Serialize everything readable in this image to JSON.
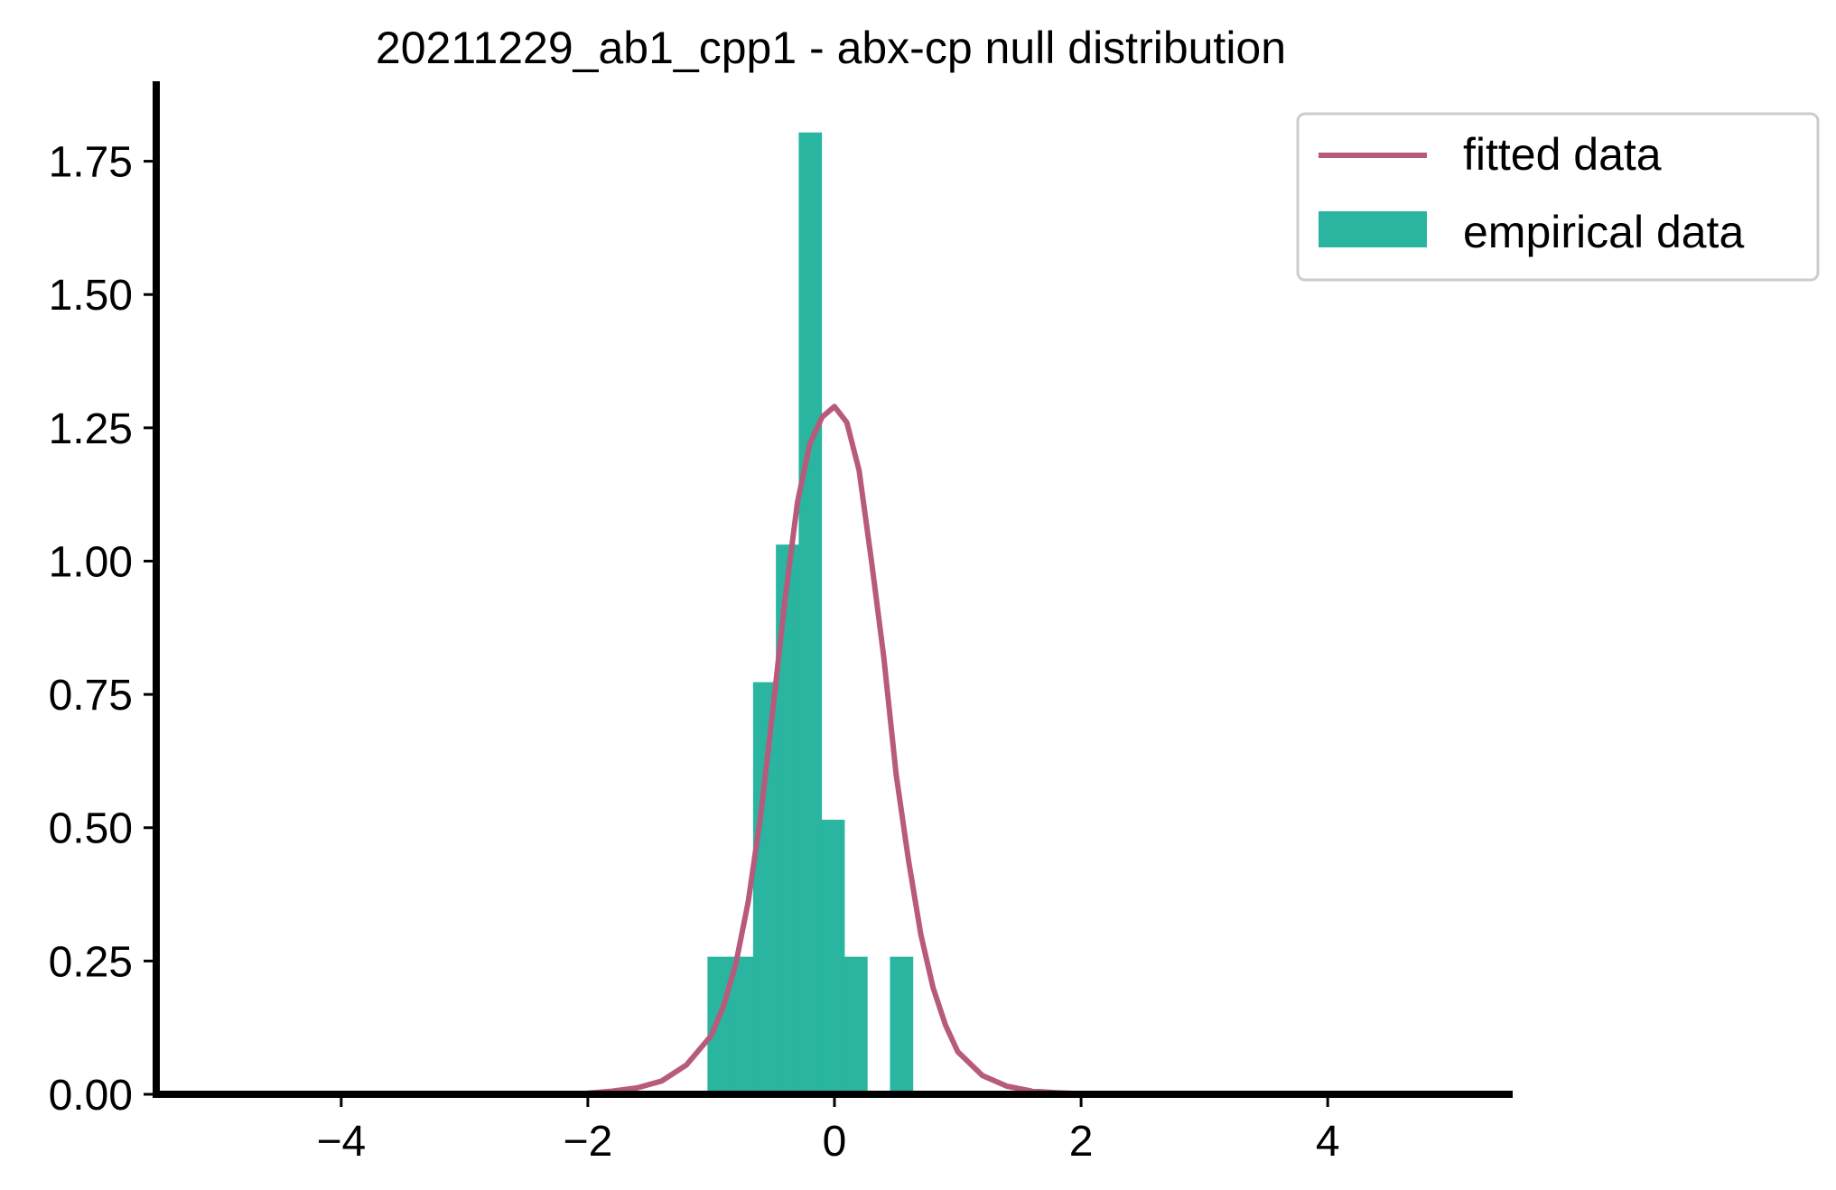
{
  "chart_data": {
    "type": "bar",
    "title": "20211229_ab1_cpp1 - abx-cp null distribution",
    "xlabel": "",
    "ylabel": "",
    "xlim": [
      -5.5,
      5.5
    ],
    "ylim": [
      0,
      1.9
    ],
    "x_ticks": [
      -4,
      -2,
      0,
      2,
      4
    ],
    "x_tick_labels": [
      "−4",
      "−2",
      "0",
      "2",
      "4"
    ],
    "y_ticks": [
      0,
      0.25,
      0.5,
      0.75,
      1.0,
      1.25,
      1.5,
      1.75
    ],
    "y_tick_labels": [
      "0.00",
      "0.25",
      "0.50",
      "0.75",
      "1.00",
      "1.25",
      "1.50",
      "1.75"
    ],
    "grid": false,
    "legend_position": "top-right, outside plot area",
    "series": [
      {
        "name": "empirical data",
        "kind": "histogram",
        "color": "#29b5a0",
        "bins": [
          {
            "x0": -1.03,
            "x1": -0.845,
            "value": 0.258
          },
          {
            "x0": -0.845,
            "x1": -0.66,
            "value": 0.258
          },
          {
            "x0": -0.66,
            "x1": -0.475,
            "value": 0.773
          },
          {
            "x0": -0.475,
            "x1": -0.29,
            "value": 1.031
          },
          {
            "x0": -0.29,
            "x1": -0.105,
            "value": 1.804
          },
          {
            "x0": -0.105,
            "x1": 0.08,
            "value": 0.515
          },
          {
            "x0": 0.08,
            "x1": 0.265,
            "value": 0.258
          },
          {
            "x0": 0.265,
            "x1": 0.45,
            "value": 0.0
          },
          {
            "x0": 0.45,
            "x1": 0.635,
            "value": 0.258
          }
        ]
      },
      {
        "name": "fitted data",
        "kind": "line",
        "color": "#b85a7c",
        "x": [
          -2.0,
          -1.8,
          -1.6,
          -1.4,
          -1.2,
          -1.0,
          -0.9,
          -0.8,
          -0.7,
          -0.6,
          -0.5,
          -0.4,
          -0.3,
          -0.2,
          -0.1,
          0.0,
          0.1,
          0.2,
          0.3,
          0.4,
          0.5,
          0.6,
          0.7,
          0.8,
          0.9,
          1.0,
          1.2,
          1.4,
          1.6,
          1.8,
          2.0
        ],
        "y": [
          0.002,
          0.006,
          0.012,
          0.025,
          0.055,
          0.11,
          0.165,
          0.245,
          0.36,
          0.52,
          0.72,
          0.93,
          1.11,
          1.22,
          1.27,
          1.29,
          1.26,
          1.17,
          1.0,
          0.82,
          0.6,
          0.44,
          0.3,
          0.2,
          0.13,
          0.08,
          0.035,
          0.015,
          0.006,
          0.003,
          0.001
        ]
      }
    ]
  }
}
